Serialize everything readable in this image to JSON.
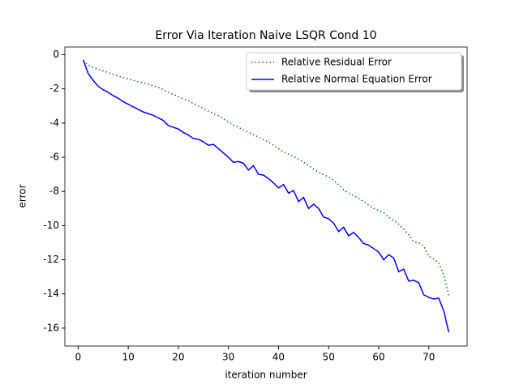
{
  "chart_data": {
    "type": "line",
    "title": "Error Via Iteration Naive LSQR Cond 10",
    "xlabel": "iteration number",
    "ylabel": "error",
    "x": [
      1,
      2,
      3,
      4,
      5,
      6,
      7,
      8,
      9,
      10,
      11,
      12,
      13,
      14,
      15,
      16,
      17,
      18,
      19,
      20,
      21,
      22,
      23,
      24,
      25,
      26,
      27,
      28,
      29,
      30,
      31,
      32,
      33,
      34,
      35,
      36,
      37,
      38,
      39,
      40,
      41,
      42,
      43,
      44,
      45,
      46,
      47,
      48,
      49,
      50,
      51,
      52,
      53,
      54,
      55,
      56,
      57,
      58,
      59,
      60,
      61,
      62,
      63,
      64,
      65,
      66,
      67,
      68,
      69,
      70,
      71,
      72,
      73,
      74
    ],
    "series": [
      {
        "name": "Relative Residual Error",
        "color": "#008000",
        "dash": "dotted",
        "values": [
          -0.35,
          -0.6,
          -0.75,
          -0.85,
          -0.95,
          -1.05,
          -1.15,
          -1.25,
          -1.35,
          -1.42,
          -1.5,
          -1.58,
          -1.65,
          -1.72,
          -1.82,
          -1.92,
          -2.05,
          -2.2,
          -2.32,
          -2.45,
          -2.58,
          -2.7,
          -2.85,
          -3.0,
          -3.15,
          -3.3,
          -3.45,
          -3.58,
          -3.75,
          -3.95,
          -4.12,
          -4.25,
          -4.4,
          -4.55,
          -4.68,
          -4.82,
          -4.98,
          -5.1,
          -5.3,
          -5.5,
          -5.68,
          -5.82,
          -5.95,
          -6.12,
          -6.3,
          -6.48,
          -6.7,
          -6.88,
          -7.02,
          -7.15,
          -7.35,
          -7.6,
          -7.9,
          -8.1,
          -8.25,
          -8.4,
          -8.6,
          -8.8,
          -9.0,
          -9.12,
          -9.25,
          -9.5,
          -9.7,
          -9.92,
          -10.2,
          -10.55,
          -10.95,
          -11.0,
          -11.2,
          -11.8,
          -11.95,
          -12.2,
          -12.9,
          -14.1
        ]
      },
      {
        "name": "Relative Normal Equation Error",
        "color": "#0000ff",
        "dash": "solid",
        "values": [
          -0.3,
          -1.1,
          -1.5,
          -1.85,
          -2.05,
          -2.2,
          -2.4,
          -2.55,
          -2.75,
          -2.9,
          -3.05,
          -3.2,
          -3.35,
          -3.45,
          -3.55,
          -3.7,
          -3.85,
          -4.15,
          -4.25,
          -4.35,
          -4.55,
          -4.7,
          -4.9,
          -4.95,
          -5.1,
          -5.3,
          -5.25,
          -5.5,
          -5.75,
          -6.0,
          -6.3,
          -6.25,
          -6.35,
          -6.75,
          -6.5,
          -7.0,
          -7.05,
          -7.25,
          -7.5,
          -7.8,
          -7.6,
          -8.1,
          -7.95,
          -8.6,
          -8.35,
          -9.0,
          -8.75,
          -9.0,
          -9.5,
          -9.6,
          -9.85,
          -10.35,
          -10.1,
          -10.6,
          -10.4,
          -10.7,
          -11.05,
          -11.15,
          -11.35,
          -11.55,
          -12.0,
          -11.7,
          -11.9,
          -12.7,
          -12.55,
          -13.25,
          -13.2,
          -13.35,
          -14.05,
          -14.2,
          -14.3,
          -14.25,
          -15.0,
          -16.25
        ]
      }
    ],
    "xlim": [
      -2.65,
      77.65
    ],
    "ylim": [
      -17.05,
      0.45
    ],
    "xticks": [
      0,
      10,
      20,
      30,
      40,
      50,
      60,
      70
    ],
    "yticks": [
      0,
      -2,
      -4,
      -6,
      -8,
      -10,
      -12,
      -14,
      -16
    ],
    "legend": "upper right",
    "grid": false
  }
}
